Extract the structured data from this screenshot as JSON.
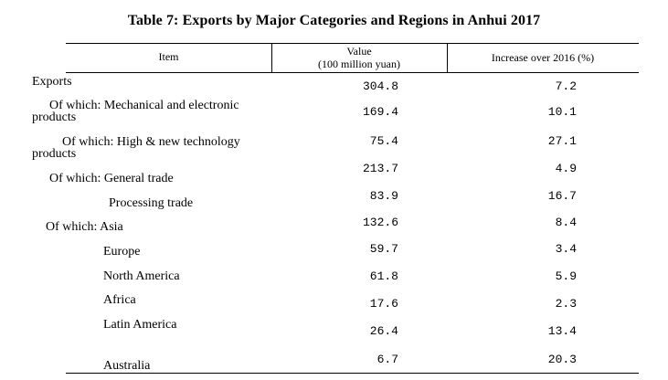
{
  "title": "Table 7: Exports by Major Categories and Regions in Anhui 2017",
  "columns": {
    "item": "Item",
    "value_line1": "Value",
    "value_line2": "(100 million yuan)",
    "increase": "Increase over 2016 (%)"
  },
  "rows": [
    {
      "label": "Exports",
      "value": "304.8",
      "increase": "7.2"
    },
    {
      "label_line1": "Of which: Mechanical and electronic",
      "label_line2": "products",
      "value": "169.4",
      "increase": "10.1"
    },
    {
      "label_line1": "Of which: High & new technology",
      "label_line2": "products",
      "value": "75.4",
      "increase": "27.1"
    },
    {
      "label": "Of which: General trade",
      "value": "213.7",
      "increase": "4.9"
    },
    {
      "label": "Processing trade",
      "value": "83.9",
      "increase": "16.7"
    },
    {
      "label": "Of which: Asia",
      "value": "132.6",
      "increase": "8.4"
    },
    {
      "label": "Europe",
      "value": "59.7",
      "increase": "3.4"
    },
    {
      "label": "North America",
      "value": "61.8",
      "increase": "5.9"
    },
    {
      "label": "Africa",
      "value": "17.6",
      "increase": "2.3"
    },
    {
      "label": "Latin America",
      "value": "26.4",
      "increase": "13.4"
    },
    {
      "label": "Australia",
      "value": "6.7",
      "increase": "20.3"
    }
  ]
}
